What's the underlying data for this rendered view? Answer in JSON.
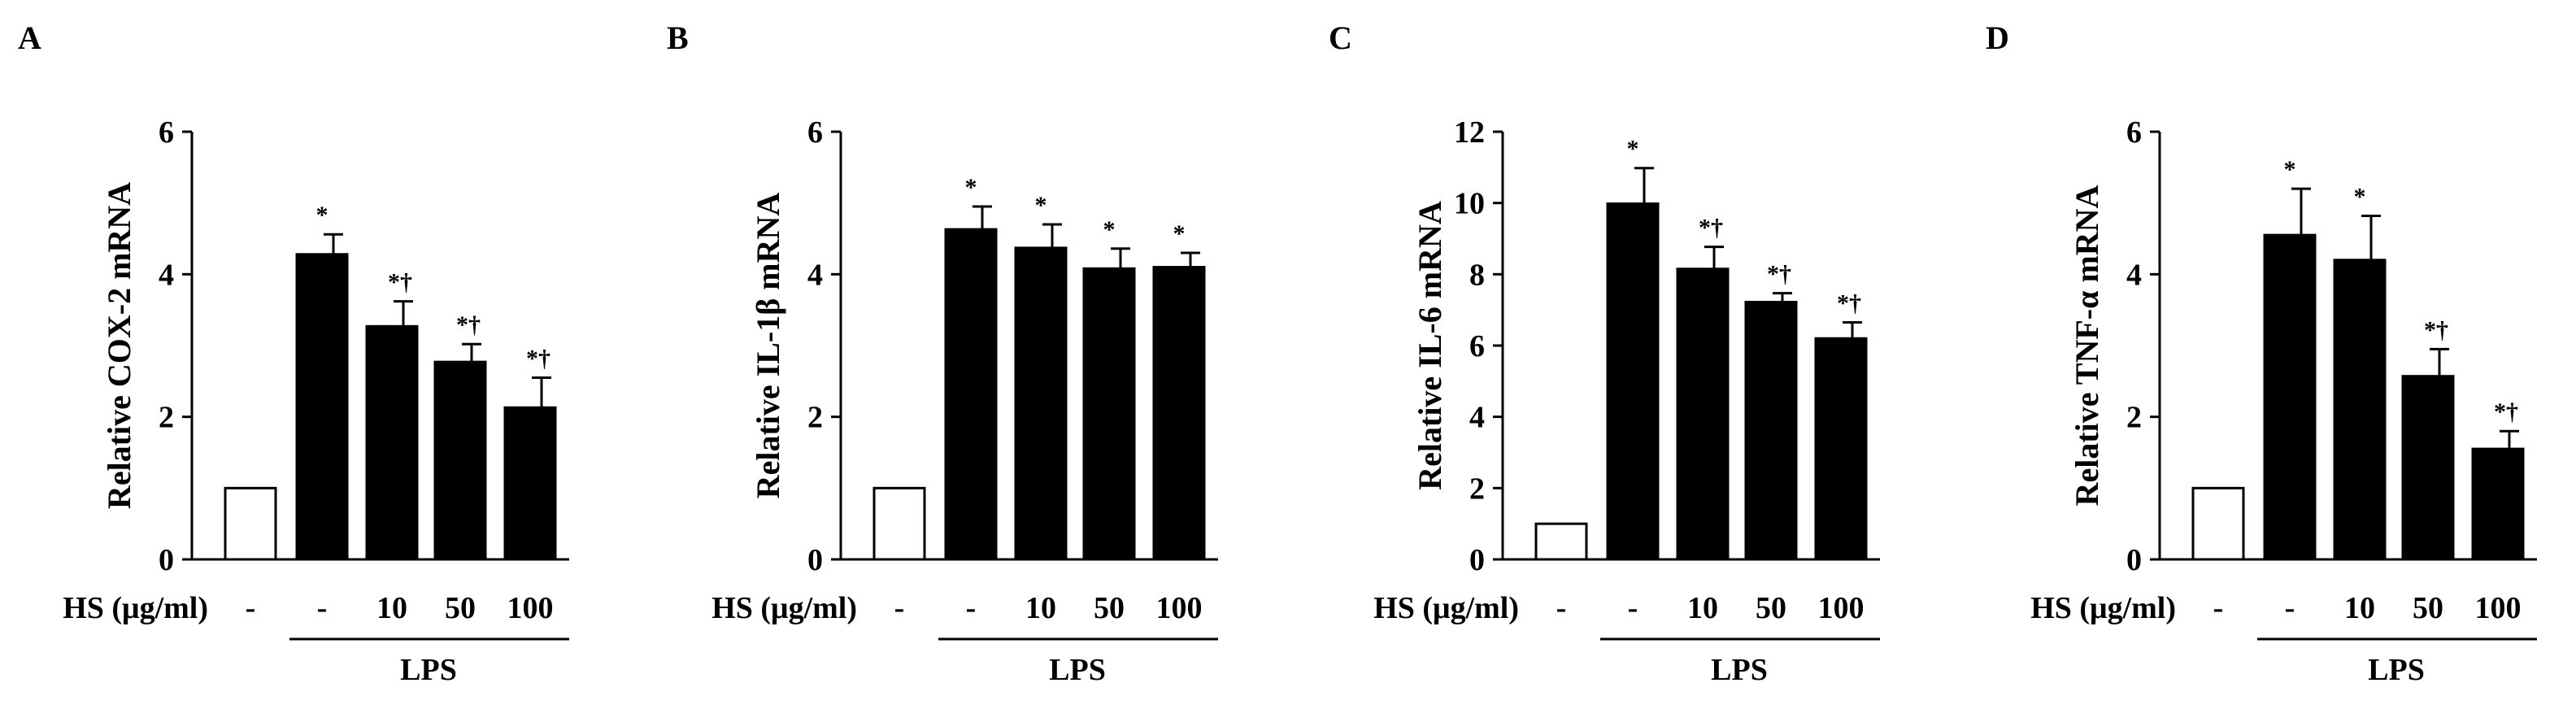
{
  "chart_data": [
    {
      "type": "bar",
      "panel": "A",
      "ylabel": "Relative COX-2 mRNA",
      "xlabel": "HS (μg/ml)",
      "categories": [
        "-",
        "-",
        "10",
        "50",
        "100"
      ],
      "values": [
        1.0,
        4.28,
        3.27,
        2.77,
        2.13
      ],
      "errors": [
        0,
        0.28,
        0.35,
        0.25,
        0.42
      ],
      "fills": [
        "#ffffff",
        "#000000",
        "#000000",
        "#000000",
        "#000000"
      ],
      "annotations": [
        "",
        "*",
        "*†",
        "*†",
        "*†"
      ],
      "ylim": [
        0,
        6
      ],
      "yticks": [
        0,
        2,
        4,
        6
      ],
      "group_label": "LPS"
    },
    {
      "type": "bar",
      "panel": "B",
      "ylabel": "Relative IL-1β mRNA",
      "xlabel": "HS (μg/ml)",
      "categories": [
        "-",
        "-",
        "10",
        "50",
        "100"
      ],
      "values": [
        1.0,
        4.63,
        4.37,
        4.08,
        4.1
      ],
      "errors": [
        0,
        0.32,
        0.33,
        0.28,
        0.2
      ],
      "fills": [
        "#ffffff",
        "#000000",
        "#000000",
        "#000000",
        "#000000"
      ],
      "annotations": [
        "",
        "*",
        "*",
        "*",
        "*"
      ],
      "ylim": [
        0,
        6
      ],
      "yticks": [
        0,
        2,
        4,
        6
      ],
      "group_label": "LPS"
    },
    {
      "type": "bar",
      "panel": "C",
      "ylabel": "Relative IL-6 mRNA",
      "xlabel": "HS (μg/ml)",
      "categories": [
        "-",
        "-",
        "10",
        "50",
        "100"
      ],
      "values": [
        1.0,
        9.98,
        8.15,
        7.22,
        6.2
      ],
      "errors": [
        0,
        1.0,
        0.62,
        0.25,
        0.45
      ],
      "fills": [
        "#ffffff",
        "#000000",
        "#000000",
        "#000000",
        "#000000"
      ],
      "annotations": [
        "",
        "*",
        "*†",
        "*†",
        "*†"
      ],
      "ylim": [
        0,
        12
      ],
      "yticks": [
        0,
        2,
        4,
        6,
        8,
        10,
        12
      ],
      "group_label": "LPS"
    },
    {
      "type": "bar",
      "panel": "D",
      "ylabel": "Relative TNF-α mRNA",
      "xlabel": "HS (μg/ml)",
      "categories": [
        "-",
        "-",
        "10",
        "50",
        "100"
      ],
      "values": [
        1.0,
        4.55,
        4.2,
        2.57,
        1.55
      ],
      "errors": [
        0,
        0.65,
        0.62,
        0.38,
        0.25
      ],
      "fills": [
        "#ffffff",
        "#000000",
        "#000000",
        "#000000",
        "#000000"
      ],
      "annotations": [
        "",
        "*",
        "*",
        "*†",
        "*†"
      ],
      "ylim": [
        0,
        6
      ],
      "yticks": [
        0,
        2,
        4,
        6
      ],
      "group_label": "LPS"
    }
  ]
}
